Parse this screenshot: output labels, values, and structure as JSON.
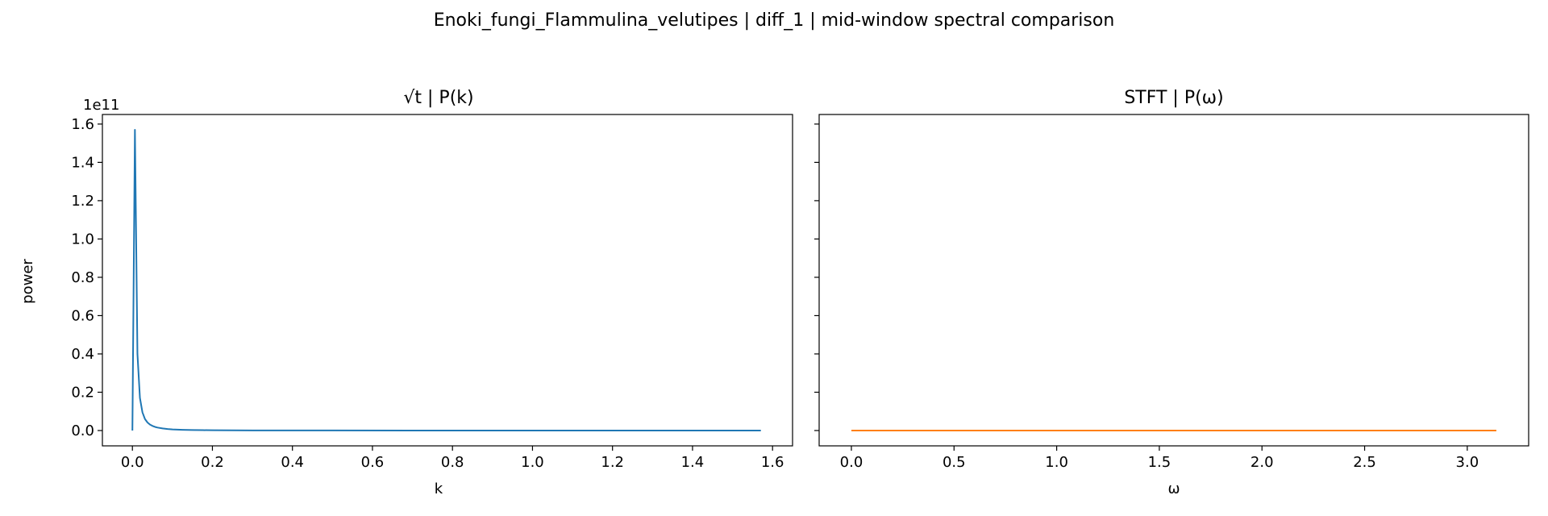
{
  "figure": {
    "suptitle": "Enoki_fungi_Flammulina_velutipes | diff_1 | mid-window spectral comparison"
  },
  "chart_data": [
    {
      "type": "line",
      "title": "√t | P(k)",
      "xlabel": "k",
      "ylabel": "power",
      "offset_label": "1e11",
      "xlim": [
        -0.075,
        1.65
      ],
      "ylim": [
        -0.08,
        1.65
      ],
      "x_ticks": [
        0.0,
        0.2,
        0.4,
        0.6,
        0.8,
        1.0,
        1.2,
        1.4,
        1.6
      ],
      "x_tick_labels": [
        "0.0",
        "0.2",
        "0.4",
        "0.6",
        "0.8",
        "1.0",
        "1.2",
        "1.4",
        "1.6"
      ],
      "y_ticks": [
        0.0,
        0.2,
        0.4,
        0.6,
        0.8,
        1.0,
        1.2,
        1.4,
        1.6
      ],
      "y_tick_labels": [
        "0.0",
        "0.2",
        "0.4",
        "0.6",
        "0.8",
        "1.0",
        "1.2",
        "1.4",
        "1.6"
      ],
      "grid": false,
      "series": [
        {
          "color": "#1f77b4",
          "x": [
            0.0,
            0.0063,
            0.0126,
            0.0188,
            0.0251,
            0.0314,
            0.0377,
            0.044,
            0.0503,
            0.0565,
            0.0628,
            0.0754,
            0.088,
            0.1005,
            0.1131,
            0.1257,
            0.1508,
            0.1759,
            0.2011,
            0.2513,
            0.3016,
            0.4021,
            0.5027,
            0.7539,
            1.0053,
            1.2566,
            1.5708
          ],
          "y": [
            0.0,
            1.57,
            0.4,
            0.17,
            0.095,
            0.06,
            0.042,
            0.031,
            0.024,
            0.019,
            0.0155,
            0.011,
            0.008,
            0.006,
            0.0047,
            0.0038,
            0.0026,
            0.0019,
            0.0015,
            0.001,
            0.0007,
            0.0004,
            0.0003,
            0.00015,
            0.0001,
            6e-05,
            4e-05
          ]
        }
      ]
    },
    {
      "type": "line",
      "title": "STFT | P(ω)",
      "xlabel": "ω",
      "ylabel": "",
      "shared_y": true,
      "xlim": [
        -0.157,
        3.299
      ],
      "ylim": [
        -0.08,
        1.65
      ],
      "x_ticks": [
        0.0,
        0.5,
        1.0,
        1.5,
        2.0,
        2.5,
        3.0
      ],
      "x_tick_labels": [
        "0.0",
        "0.5",
        "1.0",
        "1.5",
        "2.0",
        "2.5",
        "3.0"
      ],
      "y_ticks": [
        0.0,
        0.2,
        0.4,
        0.6,
        0.8,
        1.0,
        1.2,
        1.4,
        1.6
      ],
      "grid": false,
      "series": [
        {
          "color": "#ff7f0e",
          "x": [
            0.0,
            0.5,
            1.0,
            1.5,
            2.0,
            2.5,
            3.0,
            3.1416
          ],
          "y": [
            0.0,
            0.0,
            0.0,
            0.0,
            0.0,
            0.0,
            0.0,
            0.0
          ]
        }
      ]
    }
  ]
}
